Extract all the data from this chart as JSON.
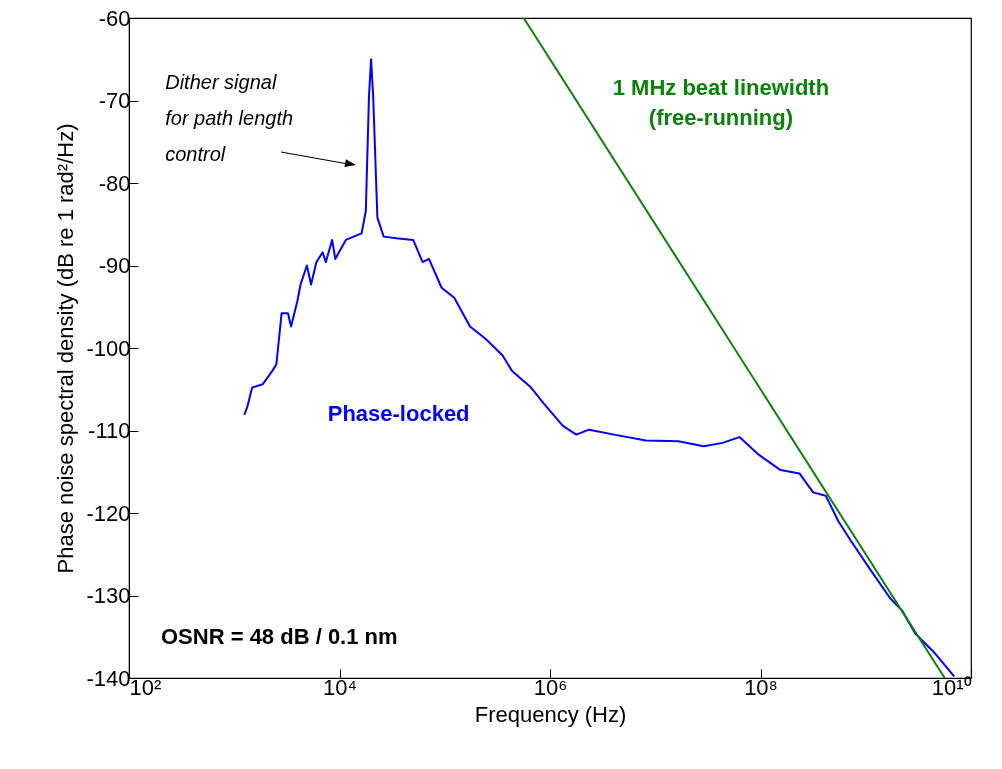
{
  "chart_data": {
    "type": "line",
    "xlabel": "Frequency (Hz)",
    "ylabel": "Phase noise spectral density (dB re 1 rad²/Hz)",
    "log": "x",
    "grid": false,
    "legend": false,
    "marker": "none",
    "line_style": "solid",
    "xlim": [
      100,
      10000000000
    ],
    "xticks": [
      {
        "value": 100,
        "label": "10²"
      },
      {
        "value": 10000,
        "label": "10⁴"
      },
      {
        "value": 1000000,
        "label": "10⁶"
      },
      {
        "value": 100000000,
        "label": "10⁸"
      },
      {
        "value": 10000000000,
        "label": "10¹⁰"
      }
    ],
    "ylim": [
      -140,
      -60
    ],
    "yticks": [
      -140,
      -130,
      -120,
      -110,
      -100,
      -90,
      -80,
      -70,
      -60
    ],
    "series": [
      {
        "name": "Phase-locked",
        "color": "#0000ff",
        "x": [
          1245,
          1334,
          1479,
          1862,
          2291,
          2512,
          2818,
          3236,
          3467,
          3981,
          4266,
          4898,
          5370,
          6026,
          6918,
          7413,
          8511,
          9120,
          11482,
          16218,
          17783,
          19055,
          19953,
          20893,
          22909,
          26303,
          34674,
          50119,
          61660,
          70795,
          93325,
          123027,
          173780,
          245471,
          354813,
          436516,
          660693,
          870964,
          1318257,
          1778279,
          2344229,
          4073803,
          8128305,
          16595869,
          28840315,
          43651583,
          63095734,
          95499259,
          154881662,
          234422882,
          316227766,
          416869383,
          549540874,
          724435960,
          1096478196,
          1698243652,
          2238721139,
          2951209227,
          4466835922,
          6918309709
        ],
        "values": [
          -108.1,
          -107.1,
          -104.8,
          -104.4,
          -102.8,
          -102.0,
          -95.8,
          -95.8,
          -97.4,
          -94.3,
          -92.3,
          -90.0,
          -92.3,
          -89.6,
          -88.4,
          -89.6,
          -86.9,
          -89.2,
          -86.9,
          -86.1,
          -83.4,
          -69.5,
          -65.0,
          -69.5,
          -84.2,
          -86.5,
          -86.7,
          -86.9,
          -89.6,
          -89.2,
          -92.7,
          -93.9,
          -97.4,
          -98.9,
          -100.9,
          -102.8,
          -104.8,
          -106.7,
          -109.4,
          -110.5,
          -109.9,
          -110.5,
          -111.2,
          -111.3,
          -111.9,
          -111.5,
          -110.8,
          -112.9,
          -114.8,
          -115.2,
          -117.5,
          -117.9,
          -121.0,
          -123.4,
          -126.8,
          -130.3,
          -131.9,
          -134.6,
          -136.9,
          -139.8
        ]
      },
      {
        "name": "1 MHz beat linewidth\n(free-running)",
        "color": "#0b820b",
        "x": [
          562341,
          5623413252
        ],
        "values": [
          -60,
          -140
        ]
      }
    ],
    "annotations": [
      "Dither signal\nfor path length\ncontrol",
      "OSNR = 48 dB / 0.1 nm"
    ]
  }
}
